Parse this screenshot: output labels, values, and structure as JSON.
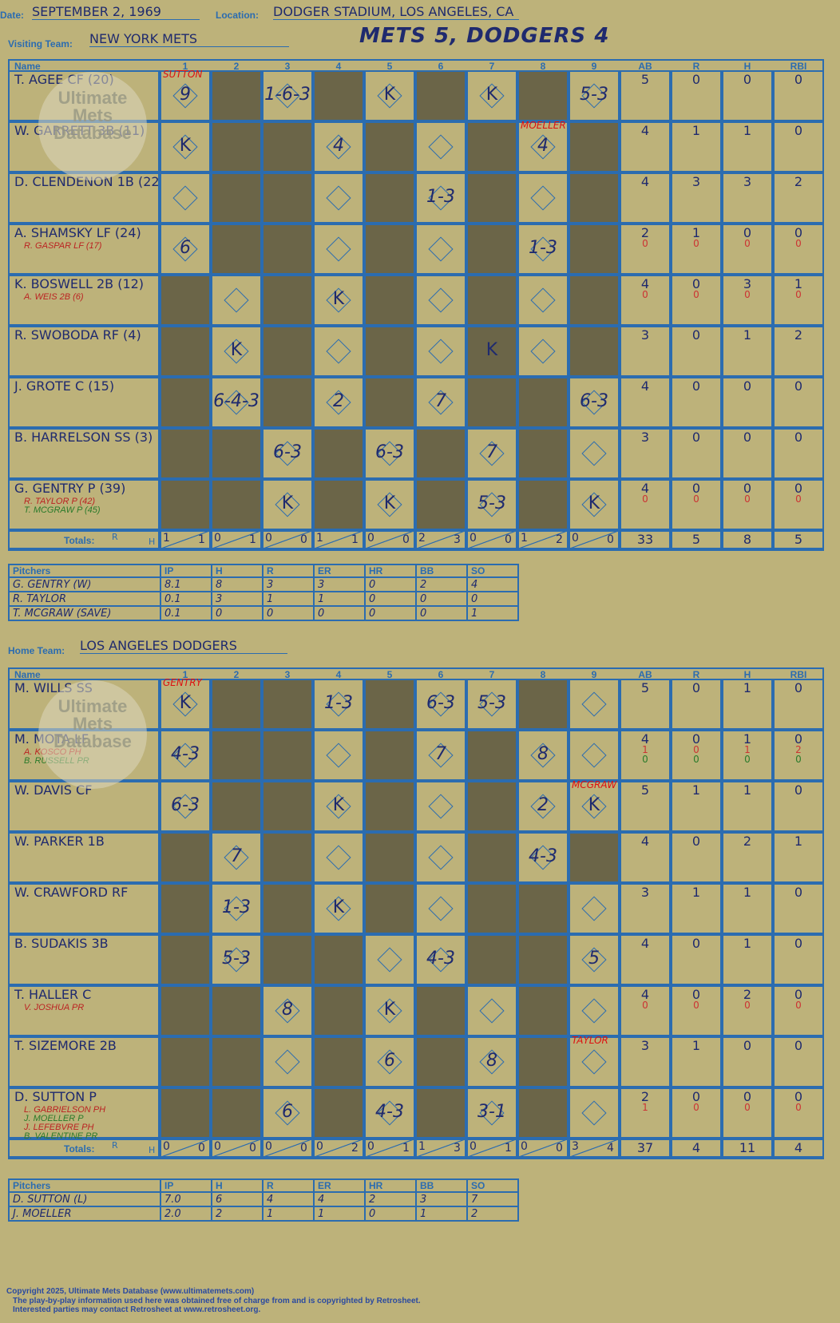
{
  "header": {
    "date_label": "Date:",
    "date": "SEPTEMBER 2, 1969",
    "location_label": "Location:",
    "location": "DODGER STADIUM, LOS ANGELES, CA",
    "visiting_label": "Visiting Team:",
    "visiting_team": "NEW YORK METS",
    "home_label": "Home Team:",
    "home_team": "LOS ANGELES DODGERS",
    "result": "METS 5, DODGERS 4"
  },
  "watermark": {
    "line1": "Ultimate",
    "line2": "Mets",
    "line3": "Database"
  },
  "columns": {
    "name": "Name",
    "innings": [
      "1",
      "2",
      "3",
      "4",
      "5",
      "6",
      "7",
      "8",
      "9"
    ],
    "stats": [
      "AB",
      "R",
      "H",
      "RBI"
    ],
    "totals": "Totals:",
    "r": "R",
    "h": "H"
  },
  "visitors": {
    "batters": [
      {
        "name": "T. AGEE CF (20)",
        "subs": [],
        "stats": [
          "5",
          "0",
          "0",
          "0"
        ]
      },
      {
        "name": "W. GARRETT 3B (11)",
        "subs": [],
        "stats": [
          "4",
          "1",
          "1",
          "0"
        ]
      },
      {
        "name": "D. CLENDENON 1B (22)",
        "subs": [],
        "stats": [
          "4",
          "3",
          "3",
          "2"
        ]
      },
      {
        "name": "A. SHAMSKY LF (24)",
        "subs": [
          "R. GASPAR LF (17)"
        ],
        "stats": [
          "2",
          "1",
          "0",
          "0"
        ],
        "substats": [
          "0",
          "0",
          "0",
          "0"
        ]
      },
      {
        "name": "K. BOSWELL 2B (12)",
        "subs": [
          "A. WEIS 2B (6)"
        ],
        "stats": [
          "4",
          "0",
          "3",
          "1"
        ],
        "substats": [
          "0",
          "0",
          "0",
          "0"
        ]
      },
      {
        "name": "R. SWOBODA RF (4)",
        "subs": [],
        "stats": [
          "3",
          "0",
          "1",
          "2"
        ]
      },
      {
        "name": "J. GROTE C (15)",
        "subs": [],
        "stats": [
          "4",
          "0",
          "0",
          "0"
        ]
      },
      {
        "name": "B. HARRELSON SS (3)",
        "subs": [],
        "stats": [
          "3",
          "0",
          "0",
          "0"
        ]
      },
      {
        "name": "G. GENTRY P (39)",
        "subs": [
          "R. TAYLOR P (42)",
          "T. MCGRAW P (45)"
        ],
        "stats": [
          "4",
          "0",
          "0",
          "0"
        ],
        "substats": [
          "0",
          "0",
          "0",
          "0"
        ]
      }
    ],
    "plays": [
      [
        "9",
        "",
        "1-6-3",
        "",
        "K",
        "",
        "K",
        "",
        "5-3"
      ],
      [
        "K",
        "",
        "",
        "4",
        "",
        "",
        "",
        "4",
        ""
      ],
      [
        "",
        "",
        "",
        "",
        "",
        "1-3",
        "",
        "",
        ""
      ],
      [
        "6",
        "",
        "",
        "",
        "",
        "",
        "",
        "1-3",
        ""
      ],
      [
        "",
        "",
        "",
        "K",
        "",
        "",
        "",
        "",
        ""
      ],
      [
        "",
        "K",
        "",
        "",
        "",
        "",
        "K",
        "",
        ""
      ],
      [
        "",
        "6-4-3",
        "",
        "2",
        "",
        "7",
        "",
        "",
        "6-3"
      ],
      [
        "",
        "",
        "6-3",
        "",
        "6-3",
        "",
        "7",
        "",
        ""
      ],
      [
        "",
        "",
        "K",
        "",
        "K",
        "",
        "5-3",
        "",
        "K"
      ]
    ],
    "notes": {
      "sutton": "SUTTON",
      "moeller": "MOELLER"
    },
    "inning_totals": [
      [
        "1",
        "1"
      ],
      [
        "0",
        "1"
      ],
      [
        "0",
        "0"
      ],
      [
        "1",
        "1"
      ],
      [
        "0",
        "0"
      ],
      [
        "2",
        "3"
      ],
      [
        "0",
        "0"
      ],
      [
        "1",
        "2"
      ],
      [
        "0",
        "0"
      ]
    ],
    "totals": [
      "33",
      "5",
      "8",
      "5"
    ]
  },
  "visitor_pitchers": {
    "headers": [
      "Pitchers",
      "IP",
      "H",
      "R",
      "ER",
      "HR",
      "BB",
      "SO"
    ],
    "rows": [
      [
        "G. GENTRY (W)",
        "8.1",
        "8",
        "3",
        "3",
        "0",
        "2",
        "4"
      ],
      [
        "R. TAYLOR",
        "0.1",
        "3",
        "1",
        "1",
        "0",
        "0",
        "0"
      ],
      [
        "T. MCGRAW (SAVE)",
        "0.1",
        "0",
        "0",
        "0",
        "0",
        "0",
        "1"
      ]
    ]
  },
  "home": {
    "batters": [
      {
        "name": "M. WILLS SS",
        "subs": [],
        "stats": [
          "5",
          "0",
          "1",
          "0"
        ]
      },
      {
        "name": "M. MOTA LF",
        "subs": [
          "A. KOSCO PH",
          "B. RUSSELL PR"
        ],
        "stats": [
          "4",
          "0",
          "1",
          "0"
        ],
        "substats": [
          "1",
          "0",
          "1",
          "2"
        ],
        "substats2": [
          "0",
          "0",
          "0",
          "0"
        ]
      },
      {
        "name": "W. DAVIS CF",
        "subs": [],
        "stats": [
          "5",
          "1",
          "1",
          "0"
        ]
      },
      {
        "name": "W. PARKER 1B",
        "subs": [],
        "stats": [
          "4",
          "0",
          "2",
          "1"
        ]
      },
      {
        "name": "W. CRAWFORD RF",
        "subs": [],
        "stats": [
          "3",
          "1",
          "1",
          "0"
        ]
      },
      {
        "name": "B. SUDAKIS 3B",
        "subs": [],
        "stats": [
          "4",
          "0",
          "1",
          "0"
        ]
      },
      {
        "name": "T. HALLER C",
        "subs": [
          "V. JOSHUA PR"
        ],
        "stats": [
          "4",
          "0",
          "2",
          "0"
        ],
        "substats": [
          "0",
          "0",
          "0",
          "0"
        ]
      },
      {
        "name": "T. SIZEMORE 2B",
        "subs": [],
        "stats": [
          "3",
          "1",
          "0",
          "0"
        ]
      },
      {
        "name": "D. SUTTON P",
        "subs": [
          "L. GABRIELSON PH",
          "J. MOELLER P",
          "J. LEFEBVRE PH",
          "B. VALENTINE PR"
        ],
        "stats": [
          "2",
          "0",
          "0",
          "0"
        ],
        "substats": [
          "1",
          "0",
          "0",
          "0"
        ]
      }
    ],
    "plays": [
      [
        "K",
        "",
        "",
        "1-3",
        "",
        "6-3",
        "5-3",
        "",
        ""
      ],
      [
        "4-3",
        "",
        "",
        "",
        "",
        "7",
        "",
        "8",
        ""
      ],
      [
        "6-3",
        "",
        "",
        "K",
        "",
        "",
        "",
        "2",
        "K"
      ],
      [
        "",
        "7",
        "",
        "",
        "",
        "",
        "",
        "4-3",
        ""
      ],
      [
        "",
        "1-3",
        "",
        "K",
        "",
        "",
        "",
        "",
        ""
      ],
      [
        "",
        "5-3",
        "",
        "",
        "",
        "4-3",
        "",
        "",
        "5"
      ],
      [
        "",
        "",
        "8",
        "",
        "K",
        "",
        "",
        "",
        ""
      ],
      [
        "",
        "",
        "",
        "",
        "6",
        "",
        "8",
        "",
        ""
      ],
      [
        "",
        "",
        "6",
        "",
        "4-3",
        "",
        "3-1",
        "",
        ""
      ]
    ],
    "notes": {
      "gentry": "GENTRY",
      "mcgraw": "MCGRAW",
      "taylor": "TAYLOR"
    },
    "inning_totals": [
      [
        "0",
        "0"
      ],
      [
        "0",
        "0"
      ],
      [
        "0",
        "0"
      ],
      [
        "0",
        "2"
      ],
      [
        "0",
        "1"
      ],
      [
        "1",
        "3"
      ],
      [
        "0",
        "1"
      ],
      [
        "0",
        "0"
      ],
      [
        "3",
        "4"
      ]
    ],
    "totals": [
      "37",
      "4",
      "11",
      "4"
    ]
  },
  "home_pitchers": {
    "headers": [
      "Pitchers",
      "IP",
      "H",
      "R",
      "ER",
      "HR",
      "BB",
      "SO"
    ],
    "rows": [
      [
        "D. SUTTON (L)",
        "7.0",
        "6",
        "4",
        "4",
        "2",
        "3",
        "7"
      ],
      [
        "J. MOELLER",
        "2.0",
        "2",
        "1",
        "1",
        "0",
        "1",
        "2"
      ]
    ]
  },
  "footer": {
    "line1": "Copyright 2025, Ultimate Mets Database (www.ultimatemets.com)",
    "line2": "The play-by-play information used here was obtained free of charge from and is copyrighted by Retrosheet.",
    "line3": "Interested parties may contact Retrosheet at www.retrosheet.org."
  }
}
